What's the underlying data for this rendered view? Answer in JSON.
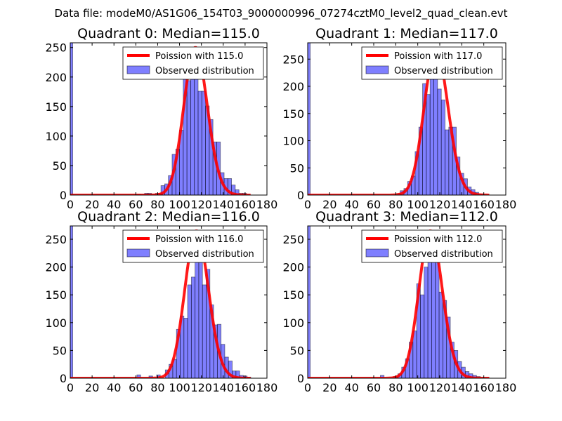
{
  "chart_data": {
    "type": "bar",
    "title": "Data file: modeM0/AS1G06_154T03_9000000996_07274cztM0_level2_quad_clean.evt",
    "xlim": [
      0,
      180
    ],
    "xticks": [
      0,
      20,
      40,
      60,
      80,
      100,
      120,
      140,
      160,
      180
    ],
    "bin_width": 3.4,
    "legend": {
      "placement": "top-right"
    },
    "panels": [
      {
        "title": "Quadrant 0: Median=115.0",
        "lambda": 115.0,
        "legend_line": "Poission with 115.0",
        "legend_bar": "Observed distribution",
        "curve_peak": 250,
        "ylim": [
          0,
          258
        ],
        "yticks": [
          0,
          50,
          100,
          150,
          200,
          250
        ],
        "bins": [
          [
            0,
            258
          ],
          [
            61,
            1
          ],
          [
            68,
            3
          ],
          [
            71,
            3
          ],
          [
            78,
            3
          ],
          [
            81,
            3
          ],
          [
            83,
            16
          ],
          [
            86.4,
            19
          ],
          [
            89.8,
            33
          ],
          [
            93.2,
            69
          ],
          [
            96.6,
            78
          ],
          [
            100,
            110
          ],
          [
            103.4,
            200
          ],
          [
            106.8,
            194
          ],
          [
            110.2,
            202
          ],
          [
            113.6,
            250
          ],
          [
            117,
            176
          ],
          [
            120.4,
            176
          ],
          [
            123.8,
            151
          ],
          [
            127.2,
            128
          ],
          [
            130.6,
            90
          ],
          [
            134,
            90
          ],
          [
            137.4,
            38
          ],
          [
            140.8,
            28
          ],
          [
            144.2,
            28
          ],
          [
            147.6,
            17
          ],
          [
            151,
            9
          ],
          [
            154.4,
            3
          ],
          [
            157.8,
            3
          ]
        ]
      },
      {
        "title": "Quadrant 1: Median=117.0",
        "lambda": 117.0,
        "legend_line": "Poission with 117.0",
        "legend_bar": "Observed distribution",
        "curve_peak": 268,
        "ylim": [
          0,
          280
        ],
        "yticks": [
          0,
          50,
          100,
          150,
          200,
          250
        ],
        "bins": [
          [
            0,
            280
          ],
          [
            81,
            3
          ],
          [
            84,
            8
          ],
          [
            87.4,
            12
          ],
          [
            90.8,
            25
          ],
          [
            94.2,
            35
          ],
          [
            97.6,
            80
          ],
          [
            101,
            125
          ],
          [
            104.4,
            205
          ],
          [
            107.8,
            185
          ],
          [
            111.2,
            218
          ],
          [
            114.6,
            265
          ],
          [
            118,
            195
          ],
          [
            121.4,
            175
          ],
          [
            124.8,
            120
          ],
          [
            128.2,
            125
          ],
          [
            131.6,
            125
          ],
          [
            135,
            70
          ],
          [
            138.4,
            40
          ],
          [
            141.8,
            30
          ],
          [
            145.2,
            15
          ],
          [
            148.6,
            10
          ],
          [
            152,
            5
          ],
          [
            155.4,
            2
          ]
        ]
      },
      {
        "title": "Quadrant 2: Median=116.0",
        "lambda": 116.0,
        "legend_line": "Poission with 116.0",
        "legend_bar": "Observed distribution",
        "curve_peak": 265,
        "ylim": [
          0,
          274
        ],
        "yticks": [
          0,
          50,
          100,
          150,
          200,
          250
        ],
        "bins": [
          [
            0,
            274
          ],
          [
            61,
            6
          ],
          [
            72,
            4
          ],
          [
            79,
            6
          ],
          [
            87,
            15
          ],
          [
            90.4,
            25
          ],
          [
            93.8,
            34
          ],
          [
            97.2,
            88
          ],
          [
            100.6,
            112
          ],
          [
            104,
            108
          ],
          [
            107.4,
            168
          ],
          [
            110.8,
            182
          ],
          [
            114.2,
            219
          ],
          [
            117.6,
            255
          ],
          [
            121,
            168
          ],
          [
            124.4,
            196
          ],
          [
            127.8,
            132
          ],
          [
            131.2,
            96
          ],
          [
            134.6,
            97
          ],
          [
            138,
            61
          ],
          [
            141.4,
            38
          ],
          [
            144.8,
            31
          ],
          [
            148.2,
            13
          ],
          [
            151.6,
            13
          ],
          [
            155,
            5
          ],
          [
            158.4,
            4
          ],
          [
            161.8,
            2
          ]
        ]
      },
      {
        "title": "Quadrant 3: Median=112.0",
        "lambda": 112.0,
        "legend_line": "Poission with 112.0",
        "legend_bar": "Observed distribution",
        "curve_peak": 265,
        "ylim": [
          0,
          274
        ],
        "yticks": [
          0,
          50,
          100,
          150,
          200,
          250
        ],
        "bins": [
          [
            0,
            274
          ],
          [
            66,
            5
          ],
          [
            78,
            3
          ],
          [
            82,
            8
          ],
          [
            85.4,
            20
          ],
          [
            88.8,
            35
          ],
          [
            92.2,
            65
          ],
          [
            95.6,
            85
          ],
          [
            99,
            170
          ],
          [
            102.4,
            150
          ],
          [
            105.8,
            200
          ],
          [
            109.2,
            230
          ],
          [
            112.6,
            210
          ],
          [
            116,
            265
          ],
          [
            119.4,
            155
          ],
          [
            122.8,
            140
          ],
          [
            126.2,
            110
          ],
          [
            129.6,
            65
          ],
          [
            133,
            50
          ],
          [
            136.4,
            30
          ],
          [
            139.8,
            20
          ],
          [
            143.2,
            12
          ],
          [
            146.6,
            8
          ],
          [
            150,
            5
          ],
          [
            153.4,
            3
          ]
        ]
      }
    ]
  }
}
